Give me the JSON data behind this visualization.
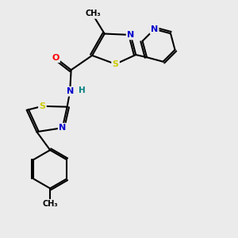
{
  "background_color": "#ebebeb",
  "atom_colors": {
    "C": "#000000",
    "N": "#0000cc",
    "S": "#cccc00",
    "O": "#ff0000",
    "H": "#008080"
  },
  "bond_color": "#000000",
  "bond_width": 1.5
}
